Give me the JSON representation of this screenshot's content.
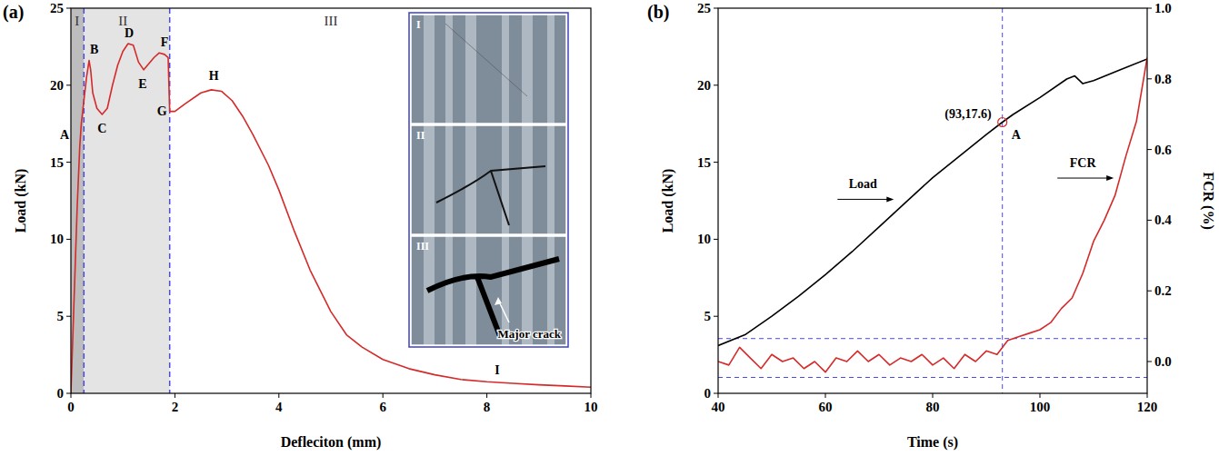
{
  "chart_data": [
    {
      "type": "line",
      "panel_label": "(a)",
      "xlabel": "Defleciton (mm)",
      "ylabel": "Load (kN)",
      "xlim": [
        0,
        10
      ],
      "ylim": [
        0,
        25
      ],
      "xticks": [
        0,
        2,
        4,
        6,
        8,
        10
      ],
      "yticks": [
        0,
        5,
        10,
        15,
        20,
        25
      ],
      "regions": [
        {
          "label": "I",
          "x0": 0,
          "x1": 0.25,
          "color": "#bdbdbd",
          "label_x": 0.12,
          "label_y": 24.2
        },
        {
          "label": "II",
          "x0": 0.25,
          "x1": 1.9,
          "color": "#e4e4e4",
          "label_x": 1.0,
          "label_y": 24.2
        },
        {
          "label": "III",
          "x0": 1.9,
          "x1": 10,
          "label_x": 5.0,
          "label_y": 24.2
        }
      ],
      "series": [
        {
          "color": "#d42a2a",
          "x": [
            0,
            0.03,
            0.08,
            0.12,
            0.17,
            0.2,
            0.25,
            0.3,
            0.35,
            0.38,
            0.42,
            0.5,
            0.6,
            0.7,
            0.8,
            0.9,
            1.0,
            1.1,
            1.2,
            1.3,
            1.4,
            1.5,
            1.6,
            1.7,
            1.8,
            1.87,
            1.9,
            2.0,
            2.2,
            2.5,
            2.7,
            2.9,
            3.1,
            3.3,
            3.5,
            3.8,
            4.0,
            4.3,
            4.6,
            5.0,
            5.3,
            5.6,
            6.0,
            6.5,
            7.0,
            7.5,
            8.0,
            8.5,
            9.0,
            9.5,
            10
          ],
          "values": [
            0,
            3,
            8,
            12,
            16,
            17.5,
            19,
            20.5,
            21.6,
            21,
            19.5,
            18.5,
            18.1,
            18.5,
            20,
            21.3,
            22.2,
            22.7,
            22.6,
            21.5,
            21,
            21.4,
            21.8,
            22.1,
            22,
            21.8,
            18.3,
            18.3,
            18.8,
            19.5,
            19.7,
            19.6,
            19,
            18,
            16.8,
            14.8,
            13.2,
            10.5,
            8,
            5.3,
            3.8,
            3,
            2.2,
            1.6,
            1.2,
            0.9,
            0.75,
            0.65,
            0.55,
            0.48,
            0.4
          ]
        }
      ],
      "annotations": [
        {
          "text": "A",
          "x": -0.12,
          "y": 16.8
        },
        {
          "text": "B",
          "x": 0.45,
          "y": 22.3
        },
        {
          "text": "C",
          "x": 0.6,
          "y": 17.2
        },
        {
          "text": "D",
          "x": 1.12,
          "y": 23.4
        },
        {
          "text": "E",
          "x": 1.38,
          "y": 20.1
        },
        {
          "text": "F",
          "x": 1.8,
          "y": 22.8
        },
        {
          "text": "G",
          "x": 1.75,
          "y": 18.3
        },
        {
          "text": "H",
          "x": 2.75,
          "y": 20.6
        },
        {
          "text": "I",
          "x": 8.2,
          "y": 1.5
        }
      ],
      "inset": {
        "panels": [
          "I",
          "II",
          "III"
        ],
        "note": "Major crack"
      }
    },
    {
      "type": "line",
      "panel_label": "(b)",
      "xlabel": "Time (s)",
      "ylabel": "Load (kN)",
      "y2label": "FCR (%)",
      "xlim": [
        40,
        120
      ],
      "ylim": [
        0,
        25
      ],
      "y2lim": [
        -0.09,
        1.0
      ],
      "xticks": [
        40,
        60,
        80,
        100,
        120
      ],
      "yticks": [
        0,
        5,
        10,
        15,
        20,
        25
      ],
      "y2ticks": [
        {
          "value": 0,
          "label": "0.0"
        },
        0.2,
        0.4,
        0.6,
        0.8,
        {
          "value": 1,
          "label": "1.0"
        }
      ],
      "series": [
        {
          "name": "Load",
          "color": "#000000",
          "label_x": 67,
          "label_y": 13.3,
          "x": [
            40,
            45,
            50,
            55,
            60,
            65,
            70,
            75,
            80,
            85,
            90,
            93,
            95,
            100,
            105,
            106.5,
            108,
            110,
            115,
            120
          ],
          "values": [
            3.1,
            3.8,
            5,
            6.3,
            7.7,
            9.2,
            10.8,
            12.4,
            14,
            15.4,
            16.8,
            17.6,
            18.1,
            19.2,
            20.4,
            20.6,
            20.1,
            20.3,
            21,
            21.7
          ]
        },
        {
          "name": "FCR",
          "color": "#d42a2a",
          "axis": "y2",
          "label_x": 108,
          "label_y": 0.55,
          "x": [
            40,
            42,
            44,
            46,
            48,
            50,
            52,
            54,
            56,
            58,
            60,
            62,
            64,
            66,
            68,
            70,
            72,
            74,
            76,
            78,
            80,
            82,
            84,
            86,
            88,
            90,
            92,
            94,
            96,
            98,
            100,
            102,
            104,
            106,
            108,
            110,
            112,
            114,
            116,
            118,
            120
          ],
          "values": [
            0,
            -0.01,
            0.04,
            0.01,
            -0.02,
            0.02,
            0,
            0.01,
            -0.02,
            0,
            -0.03,
            0.01,
            0,
            0.03,
            0,
            0.02,
            -0.01,
            0.01,
            0,
            0.02,
            -0.01,
            0.01,
            -0.02,
            0.02,
            0,
            0.03,
            0.02,
            0.06,
            0.07,
            0.08,
            0.09,
            0.11,
            0.15,
            0.18,
            0.25,
            0.34,
            0.4,
            0.47,
            0.58,
            0.68,
            0.86
          ]
        }
      ],
      "vlines": [
        93
      ],
      "y2_hlines": [
        0.065,
        -0.045
      ],
      "marked_point": {
        "x": 93,
        "y": 17.6,
        "label": "(93,17.6)",
        "letter": "A"
      }
    }
  ]
}
